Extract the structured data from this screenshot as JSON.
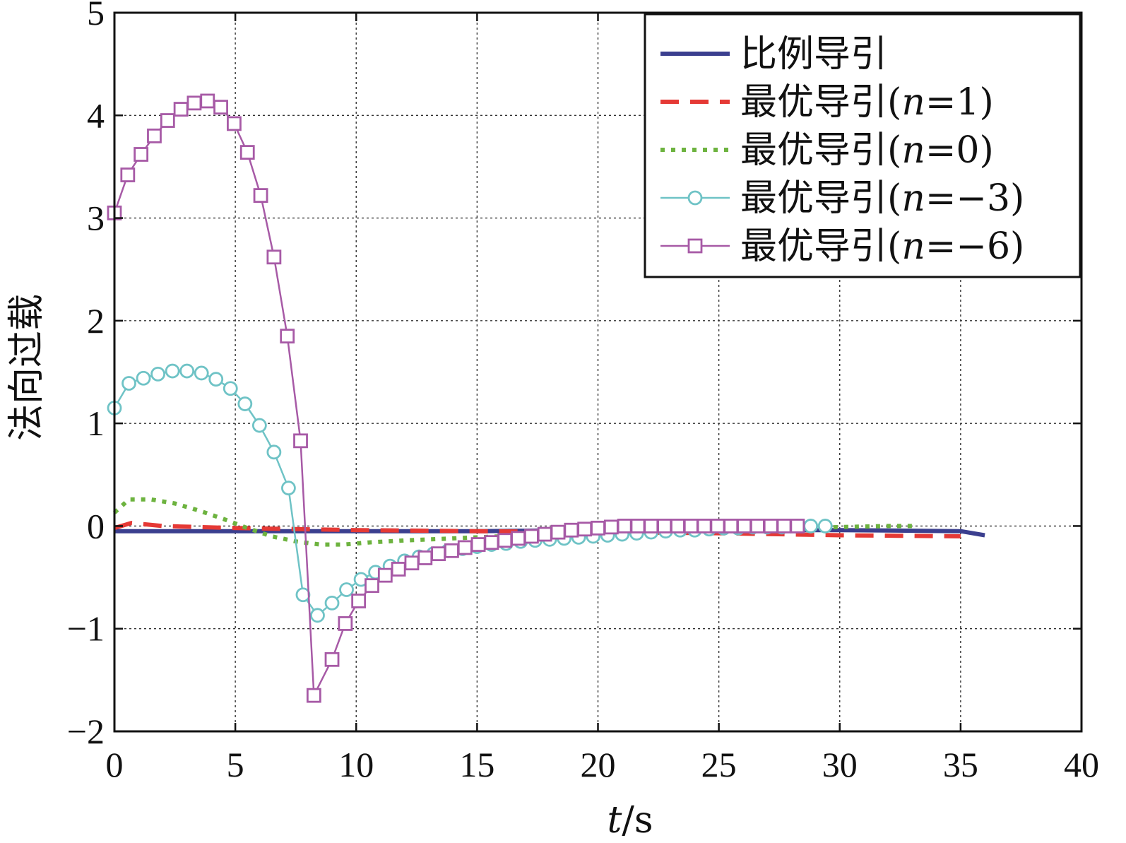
{
  "chart_data": {
    "type": "line",
    "title": "",
    "xlabel_italic": "t",
    "xlabel_unit": "/s",
    "ylabel": "法向过载",
    "xlim": [
      0,
      40
    ],
    "ylim": [
      -2,
      5
    ],
    "xticks": [
      0,
      5,
      10,
      15,
      20,
      25,
      30,
      35,
      40
    ],
    "yticks": [
      -2,
      -1,
      0,
      1,
      2,
      3,
      4,
      5
    ],
    "xtick_labels": [
      "0",
      "5",
      "10",
      "15",
      "20",
      "25",
      "30",
      "35",
      "40"
    ],
    "ytick_labels": [
      "−2",
      "−1",
      "0",
      "1",
      "2",
      "3",
      "4",
      "5"
    ],
    "grid": true,
    "legend_position": "top-right",
    "series": [
      {
        "name": "比例导引",
        "name_suffix": "",
        "color": "#3b3f8f",
        "style": "solid-thick",
        "marker": "none",
        "x": [
          0,
          5,
          10,
          15,
          20,
          25,
          30,
          35,
          36
        ],
        "y": [
          -0.05,
          -0.05,
          -0.05,
          -0.05,
          -0.04,
          -0.04,
          -0.04,
          -0.05,
          -0.09
        ]
      },
      {
        "name": "最优导引",
        "name_suffix": "(n=1)",
        "color": "#e53935",
        "style": "dashed",
        "marker": "none",
        "x": [
          0,
          0.7,
          2,
          5,
          10,
          15,
          20,
          25,
          30,
          35
        ],
        "y": [
          -0.02,
          0.03,
          0.0,
          -0.02,
          -0.04,
          -0.05,
          -0.06,
          -0.07,
          -0.09,
          -0.1
        ]
      },
      {
        "name": "最优导引",
        "name_suffix": "(n=0)",
        "color": "#6db33f",
        "style": "dotted",
        "marker": "none",
        "x": [
          0,
          0.6,
          1.5,
          2.5,
          3.5,
          4.5,
          5.5,
          6.5,
          7.5,
          8.5,
          9.5,
          10.5,
          12,
          14,
          16,
          18,
          20,
          22,
          24,
          26,
          28,
          30,
          32,
          33
        ],
        "y": [
          0.13,
          0.26,
          0.26,
          0.22,
          0.15,
          0.07,
          -0.02,
          -0.1,
          -0.15,
          -0.18,
          -0.18,
          -0.16,
          -0.14,
          -0.12,
          -0.1,
          -0.08,
          -0.07,
          -0.06,
          -0.05,
          -0.04,
          -0.02,
          -0.01,
          0.0,
          0.0
        ]
      },
      {
        "name": "最优导引",
        "name_suffix": "(n=−3)",
        "color": "#6fc3c6",
        "style": "solid",
        "marker": "circle",
        "x": [
          0,
          0.6,
          1.2,
          1.8,
          2.4,
          3.0,
          3.6,
          4.2,
          4.8,
          5.4,
          6.0,
          6.6,
          7.2,
          7.8,
          8.4,
          9.0,
          9.6,
          10.2,
          10.8,
          11.4,
          12.0,
          12.6,
          13.2,
          13.8,
          14.4,
          15.0,
          15.6,
          16.2,
          16.8,
          17.4,
          18.0,
          18.6,
          19.2,
          19.8,
          20.4,
          21.0,
          21.6,
          22.2,
          22.8,
          23.4,
          24.0,
          24.6,
          25.2,
          25.8,
          26.4,
          27.0,
          27.6,
          28.2,
          28.8,
          29.4
        ],
        "y": [
          1.15,
          1.39,
          1.44,
          1.48,
          1.51,
          1.51,
          1.49,
          1.43,
          1.34,
          1.19,
          0.98,
          0.72,
          0.37,
          -0.67,
          -0.87,
          -0.75,
          -0.62,
          -0.52,
          -0.45,
          -0.39,
          -0.34,
          -0.3,
          -0.27,
          -0.24,
          -0.22,
          -0.2,
          -0.18,
          -0.17,
          -0.15,
          -0.14,
          -0.13,
          -0.12,
          -0.11,
          -0.1,
          -0.09,
          -0.08,
          -0.07,
          -0.06,
          -0.05,
          -0.04,
          -0.04,
          -0.03,
          -0.02,
          -0.02,
          -0.01,
          -0.01,
          -0.01,
          0.0,
          0.0,
          0.0
        ]
      },
      {
        "name": "最优导引",
        "name_suffix": "(n=−6)",
        "color": "#a75aa6",
        "style": "solid",
        "marker": "square",
        "x": [
          0,
          0.55,
          1.1,
          1.65,
          2.2,
          2.75,
          3.3,
          3.85,
          4.4,
          4.95,
          5.5,
          6.05,
          6.6,
          7.15,
          7.7,
          8.25,
          9.0,
          9.55,
          10.1,
          10.65,
          11.2,
          11.75,
          12.3,
          12.85,
          13.4,
          13.95,
          14.5,
          15.05,
          15.6,
          16.15,
          16.7,
          17.25,
          17.8,
          18.35,
          18.9,
          19.45,
          20.0,
          20.55,
          21.1,
          21.65,
          22.2,
          22.75,
          23.3,
          23.85,
          24.4,
          24.95,
          25.5,
          26.05,
          26.6,
          27.15,
          27.7,
          28.25
        ],
        "y": [
          3.05,
          3.42,
          3.62,
          3.8,
          3.95,
          4.06,
          4.12,
          4.14,
          4.08,
          3.92,
          3.64,
          3.22,
          2.62,
          1.85,
          0.83,
          -1.65,
          -1.3,
          -0.95,
          -0.73,
          -0.58,
          -0.48,
          -0.42,
          -0.36,
          -0.31,
          -0.27,
          -0.24,
          -0.21,
          -0.18,
          -0.16,
          -0.14,
          -0.12,
          -0.1,
          -0.08,
          -0.06,
          -0.04,
          -0.03,
          -0.02,
          -0.01,
          0.0,
          0.0,
          0.0,
          0.0,
          0.0,
          0.0,
          0.0,
          0.0,
          0.0,
          0.0,
          0.0,
          0.0,
          0.0,
          0.0
        ]
      }
    ]
  }
}
